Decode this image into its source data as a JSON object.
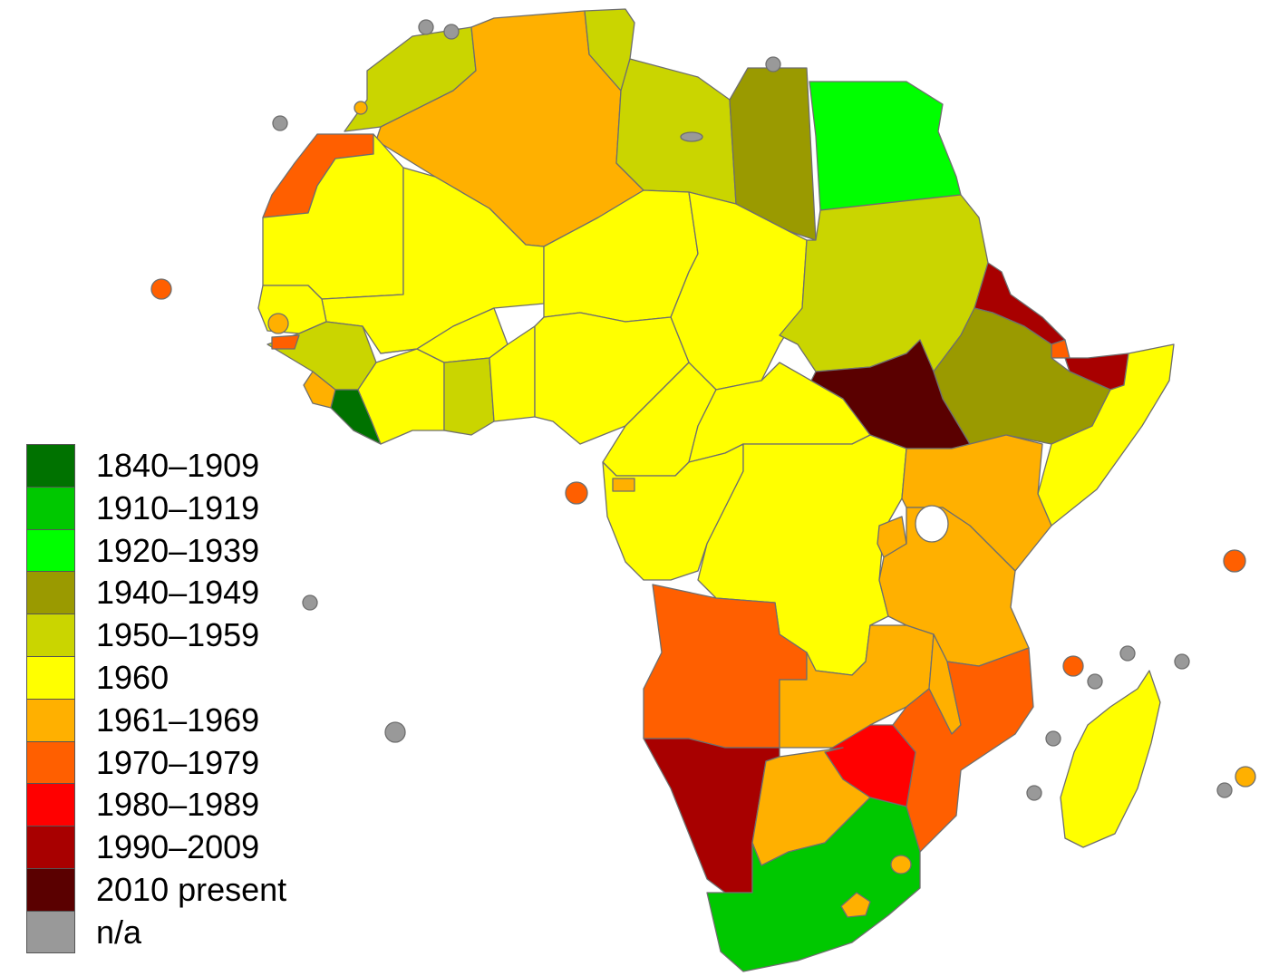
{
  "colors": {
    "c1840": "#007200",
    "c1910": "#00c800",
    "c1920": "#00ff00",
    "c1940": "#9a9a00",
    "c1950": "#cad500",
    "c1960": "#ffff00",
    "c1961": "#ffb000",
    "c1970": "#ff5f00",
    "c1980": "#ff0000",
    "c1990": "#a80000",
    "c2010": "#5a0000",
    "na": "#999999"
  },
  "legend": {
    "items": [
      {
        "label": "1840–1909",
        "color": "#007200"
      },
      {
        "label": "1910–1919",
        "color": "#00c800"
      },
      {
        "label": "1920–1939",
        "color": "#00ff00"
      },
      {
        "label": "1940–1949",
        "color": "#9a9a00"
      },
      {
        "label": "1950–1959",
        "color": "#cad500"
      },
      {
        "label": "1960",
        "color": "#ffff00"
      },
      {
        "label": "1961–1969",
        "color": "#ffb000"
      },
      {
        "label": "1970–1979",
        "color": "#ff5f00"
      },
      {
        "label": "1980–1989",
        "color": "#ff0000"
      },
      {
        "label": "1990–2009",
        "color": "#a80000"
      },
      {
        "label": "2010 present",
        "color": "#5a0000"
      },
      {
        "label": "n/a",
        "color": "#999999"
      }
    ]
  }
}
